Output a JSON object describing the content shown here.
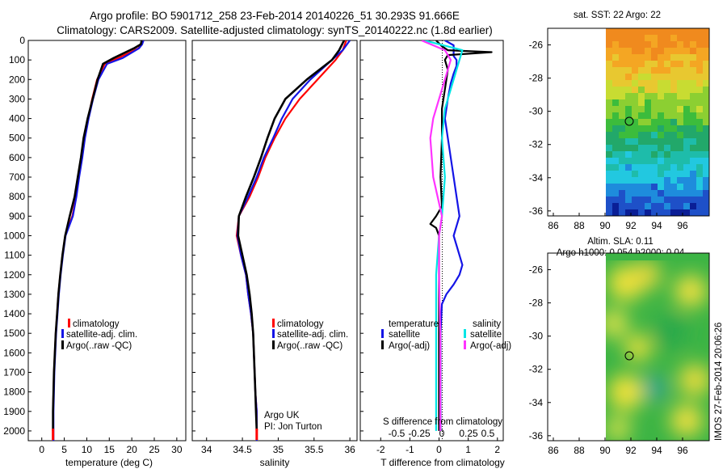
{
  "header": {
    "line1": "Argo profile: BO 5901712_258 23-Feb-2014 20140226_51 30.293S 91.666E",
    "line2": "Climatology: CARS2009. Satellite-adjusted climatology: synTS_20140222.nc (1.8d earlier)"
  },
  "depth_ticks": [
    "0",
    "100",
    "200",
    "300",
    "400",
    "500",
    "600",
    "700",
    "800",
    "900",
    "1000",
    "1100",
    "1200",
    "1300",
    "1400",
    "1500",
    "1600",
    "1700",
    "1800",
    "1900",
    "2000"
  ],
  "colors": {
    "climatology": "#ff0000",
    "satellite": "#1414e6",
    "argo": "#000000",
    "sat_salinity": "#00e5e5",
    "argo_salinity": "#ff33ff"
  },
  "panel_temp": {
    "xlabel": "temperature (deg C)",
    "xticks": [
      "0",
      "5",
      "10",
      "15",
      "20",
      "25",
      "30"
    ],
    "legend": [
      "climatology",
      "satellite-adj. clim.",
      "Argo(..raw -QC)"
    ]
  },
  "panel_sal": {
    "xlabel": "salinity",
    "xticks": [
      "34",
      "34.5",
      "35",
      "35.5",
      "36"
    ],
    "legend": [
      "climatology",
      "satellite-adj. clim.",
      "Argo(..raw -QC)"
    ],
    "note_line1": "Argo UK",
    "note_line2": "PI: Jon Turton"
  },
  "panel_diff": {
    "xlabel": "T difference from climatology",
    "top_label": "S difference from climatology",
    "xticks_t": [
      "-2",
      "-1",
      "0",
      "1",
      "2"
    ],
    "xticks_s": [
      "-0.5",
      "-0.25",
      "0",
      "0.25",
      "0.5"
    ],
    "legend_t_title": "temperature",
    "legend_t": [
      "satellite",
      "Argo(-adj)"
    ],
    "legend_s_title": "salinity",
    "legend_s": [
      "satellite",
      "Argo(-adj)"
    ]
  },
  "map_top": {
    "title": "sat. SST: 22 Argo: 22",
    "yticks": [
      "-26",
      "-28",
      "-30",
      "-32",
      "-34",
      "-36"
    ],
    "xticks": [
      "86",
      "88",
      "90",
      "92",
      "94",
      "96"
    ]
  },
  "map_bottom": {
    "title_line1": "Altim. SLA: 0.11",
    "title_line2": "Argo h1000: 0.054 h2000: 0.04",
    "yticks": [
      "-26",
      "-28",
      "-30",
      "-32",
      "-34",
      "-36"
    ],
    "xticks": [
      "86",
      "88",
      "90",
      "92",
      "94",
      "96"
    ]
  },
  "stamp": "IMOS 27-Feb-2014 20:06:26",
  "chart_data": [
    {
      "type": "line",
      "title": "",
      "xlabel": "temperature (deg C)",
      "ylabel": "",
      "xlim": [
        -3,
        32
      ],
      "ylim": [
        2050,
        0
      ],
      "series": [
        {
          "name": "climatology",
          "x": [
            22.4,
            22.1,
            21.5,
            17,
            14,
            12.3,
            11.2,
            10.3,
            9.5,
            8.9,
            8.2,
            7.6,
            6.8,
            5.2,
            4.6,
            4.1,
            3.7,
            3.4,
            3.1,
            2.9,
            2.7,
            2.6,
            2.5,
            2.5
          ],
          "y": [
            0,
            20,
            40,
            90,
            120,
            200,
            300,
            400,
            500,
            600,
            700,
            800,
            900,
            1000,
            1100,
            1200,
            1300,
            1400,
            1500,
            1600,
            1700,
            1800,
            1900,
            2050
          ]
        },
        {
          "name": "satellite-adj. clim.",
          "x": [
            22.6,
            22.3,
            21.6,
            18,
            14.5,
            12.6,
            11.4,
            10.4,
            9.6,
            9,
            8.3,
            7.7,
            6.9,
            5.3,
            4.7,
            4.2,
            3.8,
            3.5,
            3.2,
            3,
            2.8,
            2.7,
            2.6,
            2.6
          ],
          "y": [
            0,
            20,
            40,
            90,
            120,
            200,
            300,
            400,
            500,
            600,
            700,
            800,
            900,
            1000,
            1100,
            1200,
            1300,
            1400,
            1500,
            1600,
            1700,
            1800,
            1900,
            2050
          ]
        },
        {
          "name": "Argo(..raw -QC)",
          "x": [
            22.2,
            22,
            20.5,
            16,
            13.6,
            12.4,
            11.3,
            10.2,
            9.3,
            8.7,
            8,
            7.3,
            6.2,
            5.2,
            4.6,
            4.1,
            3.7,
            3.4,
            3.1,
            2.9,
            2.7,
            2.6,
            2.5,
            2.5
          ],
          "y": [
            0,
            20,
            40,
            90,
            120,
            200,
            300,
            400,
            500,
            600,
            700,
            800,
            900,
            1000,
            1100,
            1200,
            1300,
            1400,
            1500,
            1600,
            1700,
            1800,
            1900,
            2000
          ]
        }
      ]
    },
    {
      "type": "line",
      "title": "",
      "xlabel": "salinity",
      "ylabel": "",
      "xlim": [
        33.8,
        36.1
      ],
      "ylim": [
        2050,
        0
      ],
      "series": [
        {
          "name": "climatology",
          "x": [
            35.95,
            35.9,
            35.8,
            35.55,
            35.3,
            35.1,
            34.95,
            34.82,
            34.72,
            34.6,
            34.45,
            34.42,
            34.48,
            34.55,
            34.58,
            34.62,
            34.65,
            34.66,
            34.67,
            34.68,
            34.7,
            34.7,
            34.7
          ],
          "y": [
            0,
            50,
            100,
            200,
            300,
            400,
            500,
            600,
            700,
            800,
            900,
            1000,
            1100,
            1200,
            1300,
            1400,
            1500,
            1600,
            1700,
            1800,
            1900,
            2000,
            2050
          ]
        },
        {
          "name": "satellite-adj. clim.",
          "x": [
            36.0,
            35.9,
            35.75,
            35.45,
            35.2,
            35.05,
            34.93,
            34.8,
            34.7,
            34.58,
            34.45,
            34.43,
            34.48,
            34.55,
            34.58,
            34.62,
            34.65,
            34.66,
            34.67,
            34.68,
            34.7,
            34.7,
            34.7
          ],
          "y": [
            0,
            50,
            100,
            200,
            300,
            400,
            500,
            600,
            700,
            800,
            900,
            1000,
            1100,
            1200,
            1300,
            1400,
            1500,
            1600,
            1700,
            1800,
            1900,
            2000,
            2050
          ]
        },
        {
          "name": "Argo(..raw -QC)",
          "x": [
            35.92,
            35.85,
            35.75,
            35.4,
            35.1,
            34.95,
            34.85,
            34.76,
            34.66,
            34.55,
            34.45,
            34.44,
            34.5,
            34.56,
            34.6,
            34.63,
            34.65,
            34.66,
            34.67,
            34.68,
            34.69,
            34.7
          ],
          "y": [
            0,
            50,
            100,
            200,
            300,
            400,
            500,
            600,
            700,
            800,
            900,
            1000,
            1100,
            1200,
            1300,
            1400,
            1500,
            1600,
            1700,
            1800,
            1900,
            2000
          ]
        }
      ]
    },
    {
      "type": "line",
      "title": "",
      "xlabel": "T difference from climatology",
      "ylabel": "",
      "xlim": [
        -2.7,
        2.2
      ],
      "ylim": [
        2050,
        0
      ],
      "series": [
        {
          "name": "temperature satellite",
          "x": [
            0.2,
            0.5,
            0.5,
            0.5,
            0.6,
            0.6,
            0.5,
            0.4,
            0.3,
            0.2,
            0.3,
            0.4,
            0.5,
            0.6,
            0.7,
            0.6,
            0.5,
            0.6,
            0.7,
            0.8,
            0.7,
            0.5,
            0.25,
            0.1,
            0.05,
            0.05,
            0.05,
            0.05,
            0.05
          ],
          "y": [
            0,
            25,
            50,
            80,
            100,
            130,
            170,
            220,
            300,
            400,
            500,
            600,
            700,
            800,
            900,
            950,
            1000,
            1050,
            1100,
            1150,
            1200,
            1250,
            1300,
            1350,
            1500,
            1700,
            1800,
            1900,
            2000
          ]
        },
        {
          "name": "temperature Argo(-adj)",
          "x": [
            -0.1,
            0.1,
            0.3,
            1.8,
            0.3,
            0.2,
            0.3,
            0.2,
            0.1,
            0.1,
            0.05,
            0.1,
            -0.1,
            -0.3,
            -0.1,
            0,
            0,
            0,
            0
          ],
          "y": [
            0,
            30,
            50,
            60,
            75,
            100,
            150,
            250,
            350,
            500,
            700,
            850,
            900,
            940,
            960,
            1000,
            1300,
            1600,
            2000
          ]
        },
        {
          "name": "salinity satellite",
          "x": [
            -0.25,
            0.4,
            0.35,
            0.3,
            0.2,
            0.1,
            0.05,
            0.1,
            0.05,
            0,
            -0.05,
            -0.05,
            -0.05,
            -0.05,
            -0.05
          ],
          "y": [
            0,
            50,
            100,
            150,
            250,
            350,
            500,
            700,
            900,
            1000,
            1200,
            1400,
            1600,
            1800,
            2000
          ]
        },
        {
          "name": "salinity Argo(-adj)",
          "x": [
            -0.3,
            0.1,
            0.2,
            0.1,
            0,
            -0.1,
            -0.15,
            -0.1,
            0.05,
            0,
            0,
            0.02,
            0.02,
            0.02
          ],
          "y": [
            0,
            50,
            100,
            200,
            300,
            400,
            500,
            700,
            900,
            1000,
            1200,
            1500,
            1800,
            2000
          ]
        }
      ]
    }
  ]
}
